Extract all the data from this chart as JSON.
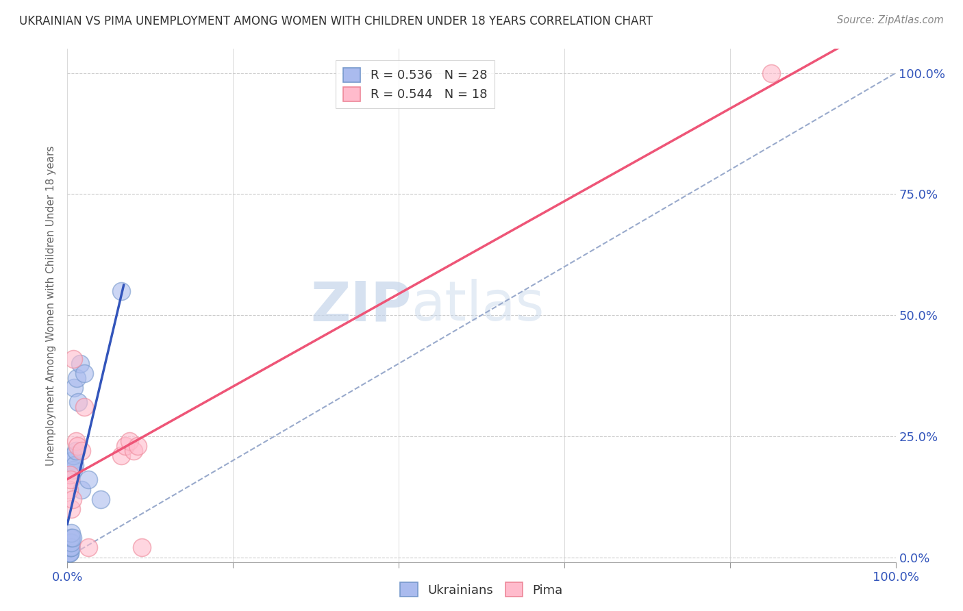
{
  "title": "UKRAINIAN VS PIMA UNEMPLOYMENT AMONG WOMEN WITH CHILDREN UNDER 18 YEARS CORRELATION CHART",
  "source": "Source: ZipAtlas.com",
  "ylabel": "Unemployment Among Women with Children Under 18 years",
  "xlabel": "",
  "background_color": "#ffffff",
  "legend_label_blue": "R = 0.536   N = 28",
  "legend_label_pink": "R = 0.544   N = 18",
  "footer_label_blue": "Ukrainians",
  "footer_label_pink": "Pima",
  "blue_scatter_color": "#aabbee",
  "blue_scatter_edge": "#7799cc",
  "pink_scatter_color": "#ffbbcc",
  "pink_scatter_edge": "#ee8899",
  "blue_line_color": "#3355bb",
  "pink_line_color": "#ee5577",
  "dashed_line_color": "#99aacc",
  "axis_label_color": "#3355bb",
  "title_color": "#333333",
  "source_color": "#888888",
  "grid_color": "#cccccc",
  "ukrainians_x": [
    0.001,
    0.002,
    0.002,
    0.003,
    0.003,
    0.003,
    0.004,
    0.004,
    0.004,
    0.005,
    0.005,
    0.005,
    0.005,
    0.006,
    0.006,
    0.007,
    0.007,
    0.008,
    0.009,
    0.01,
    0.011,
    0.013,
    0.015,
    0.017,
    0.02,
    0.025,
    0.04,
    0.065
  ],
  "ukrainians_y": [
    0.01,
    0.01,
    0.02,
    0.01,
    0.01,
    0.03,
    0.02,
    0.02,
    0.04,
    0.02,
    0.03,
    0.04,
    0.05,
    0.04,
    0.2,
    0.18,
    0.21,
    0.35,
    0.19,
    0.22,
    0.37,
    0.32,
    0.4,
    0.14,
    0.38,
    0.16,
    0.12,
    0.55
  ],
  "pima_x": [
    0.002,
    0.003,
    0.004,
    0.005,
    0.006,
    0.007,
    0.01,
    0.012,
    0.017,
    0.02,
    0.025,
    0.065,
    0.07,
    0.075,
    0.08,
    0.085,
    0.09,
    0.85
  ],
  "pima_y": [
    0.14,
    0.17,
    0.16,
    0.1,
    0.12,
    0.41,
    0.24,
    0.23,
    0.22,
    0.31,
    0.02,
    0.21,
    0.23,
    0.24,
    0.22,
    0.23,
    0.02,
    1.0
  ],
  "xlim": [
    0.0,
    1.0
  ],
  "ylim": [
    -0.01,
    1.05
  ],
  "xticks": [
    0.0,
    0.2,
    0.4,
    0.6,
    0.8,
    1.0
  ],
  "xtick_labels": [
    "0.0%",
    "",
    "",
    "",
    "",
    "100.0%"
  ],
  "ytick_positions_right": [
    0.0,
    0.25,
    0.5,
    0.75,
    1.0
  ],
  "ytick_labels_right": [
    "0.0%",
    "25.0%",
    "50.0%",
    "75.0%",
    "100.0%"
  ],
  "watermark_zip": "ZIP",
  "watermark_atlas": "atlas",
  "scatter_size": 350
}
